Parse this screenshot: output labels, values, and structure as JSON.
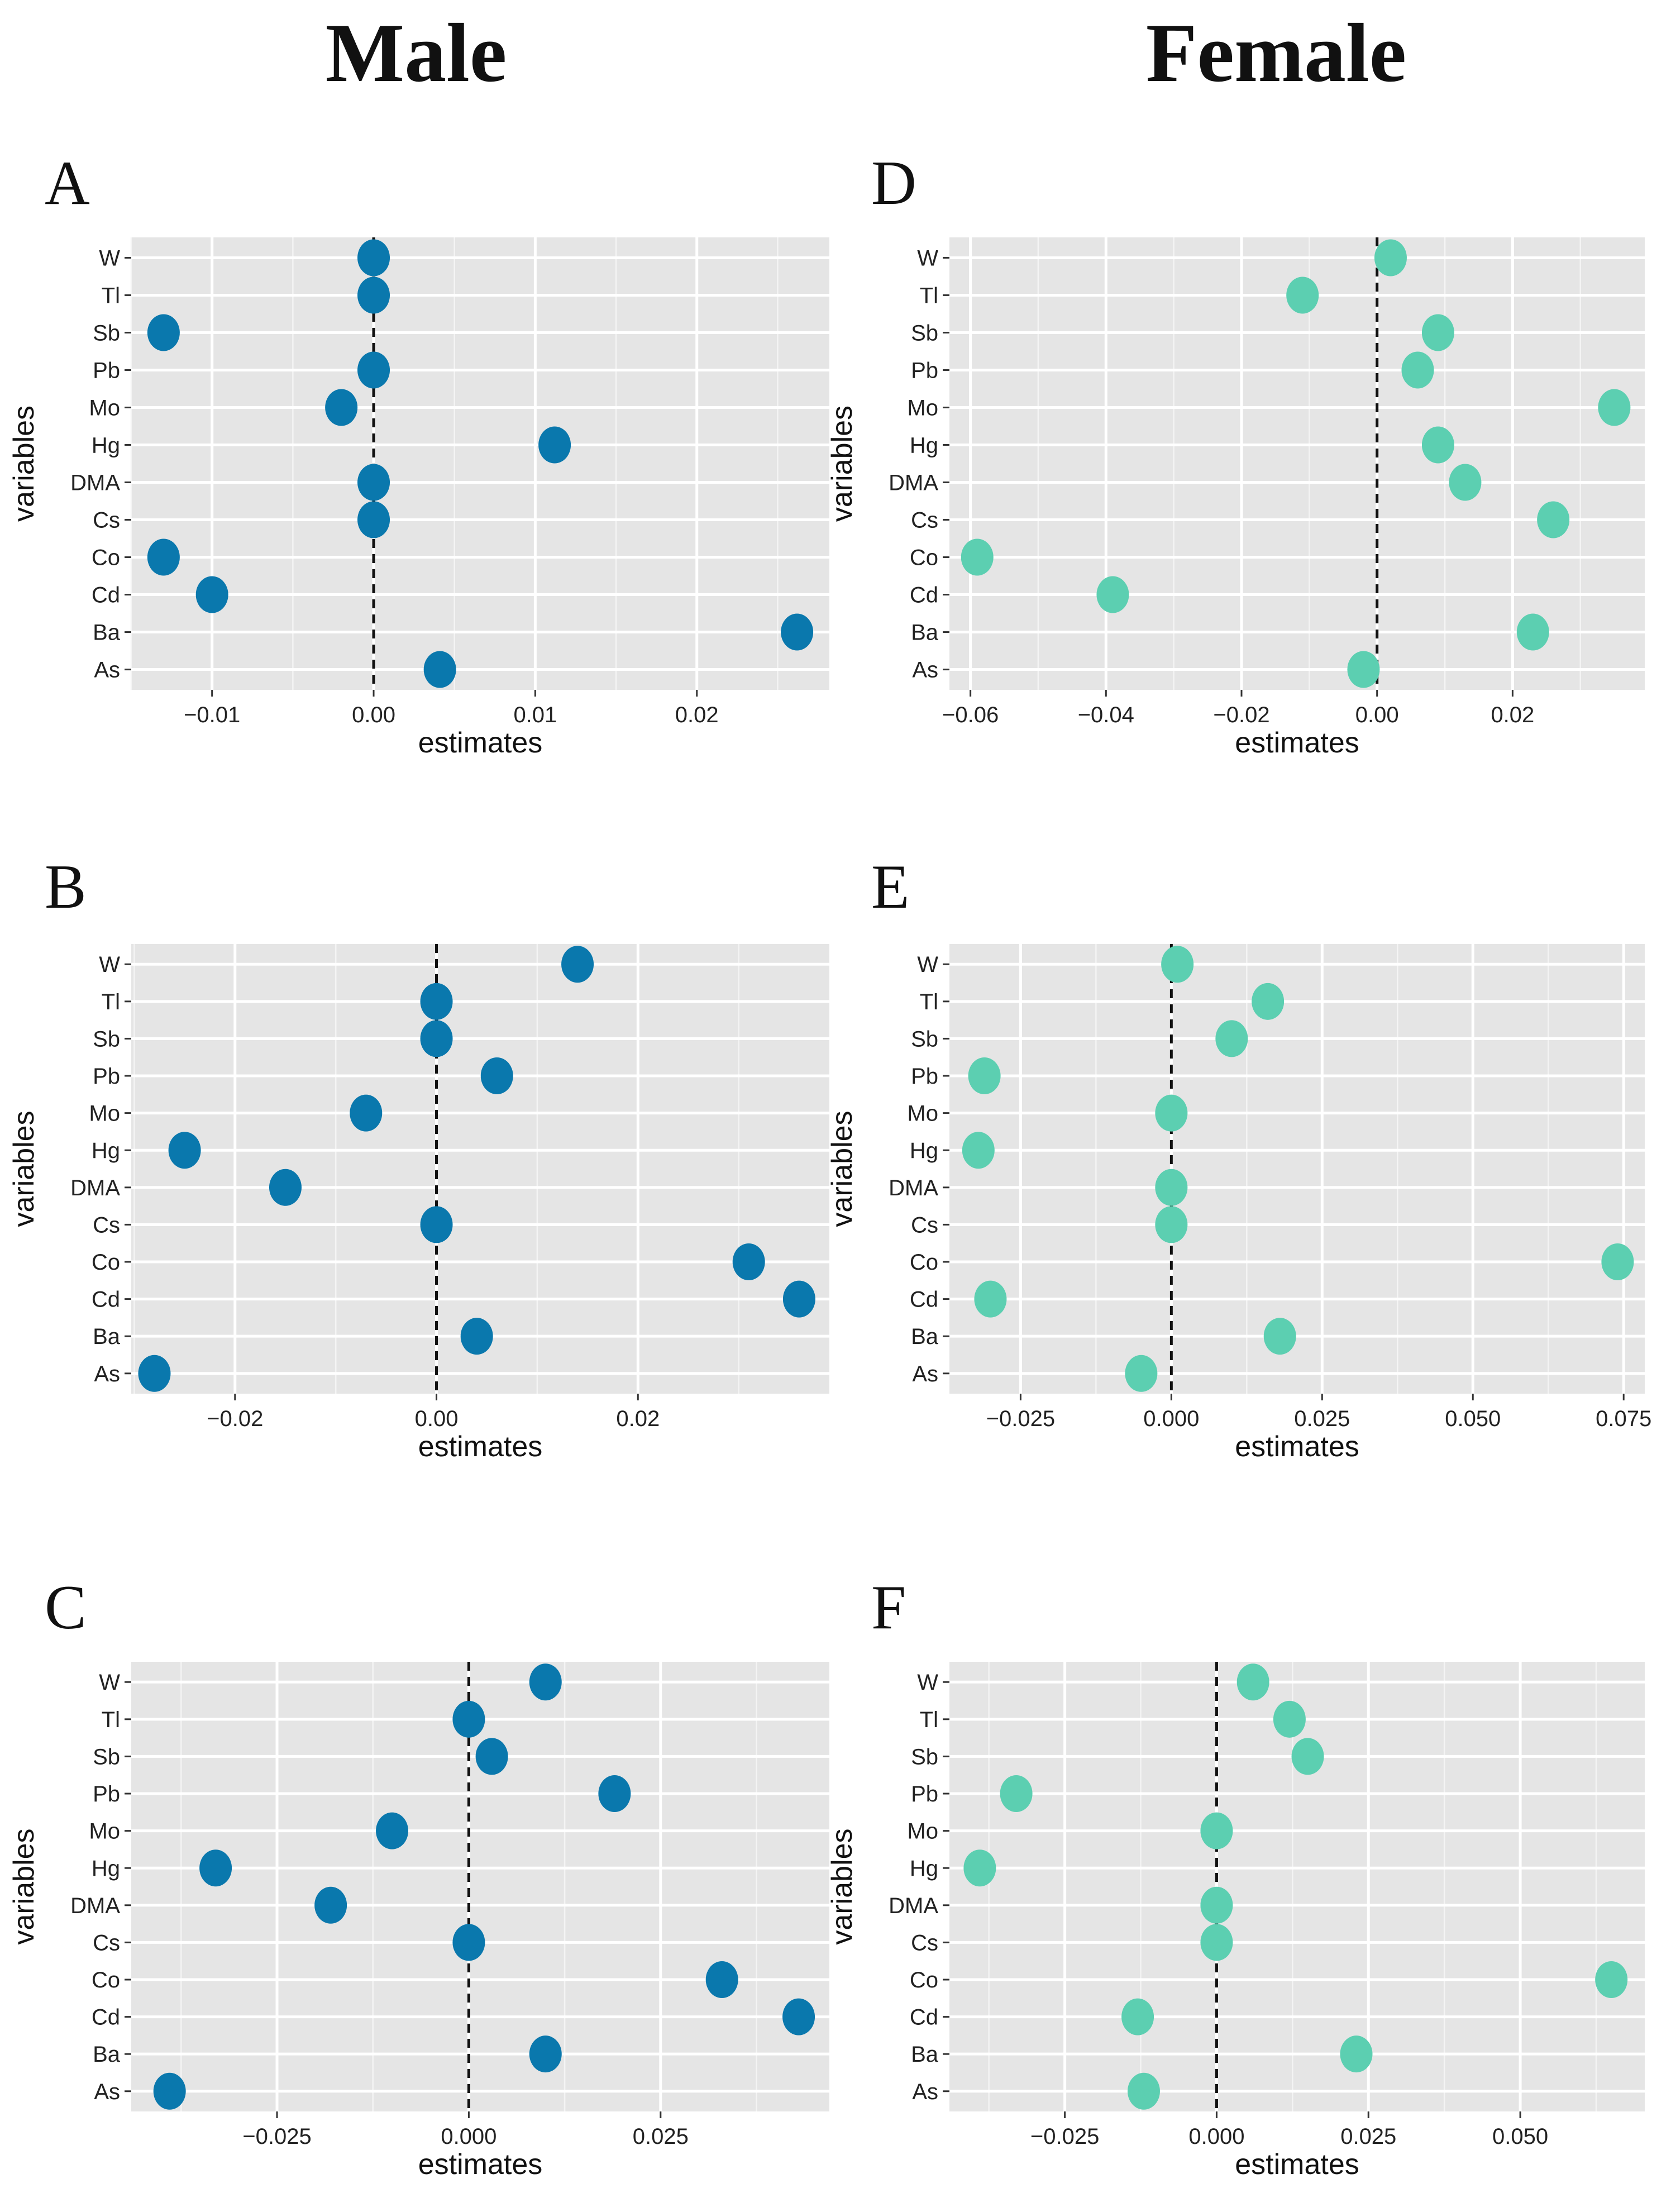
{
  "column_titles": {
    "male": "Male",
    "female": "Female"
  },
  "chart_data": [
    {
      "panel": "A",
      "group": "Male",
      "type": "scatter",
      "xlabel": "estimates",
      "ylabel": "variables",
      "xlim": [
        -0.015,
        0.0282
      ],
      "xticks": [
        -0.01,
        0.0,
        0.01,
        0.02
      ],
      "xtick_labels": [
        "-0.01",
        "0.00",
        "0.01",
        "0.02"
      ],
      "categories": [
        "W",
        "Tl",
        "Sb",
        "Pb",
        "Mo",
        "Hg",
        "DMA",
        "Cs",
        "Co",
        "Cd",
        "Ba",
        "As"
      ],
      "values": [
        0.0,
        0.0,
        -0.013,
        0.0,
        -0.002,
        0.0112,
        0.0,
        0.0,
        -0.013,
        -0.01,
        0.0262,
        0.0041
      ],
      "reference_line": 0,
      "color": "#0a78ad"
    },
    {
      "panel": "B",
      "group": "Male",
      "type": "scatter",
      "xlabel": "estimates",
      "ylabel": "variables",
      "xlim": [
        -0.0303,
        0.039
      ],
      "xticks": [
        -0.02,
        0.0,
        0.02
      ],
      "xtick_labels": [
        "-0.02",
        "0.00",
        "0.02"
      ],
      "categories": [
        "W",
        "Tl",
        "Sb",
        "Pb",
        "Mo",
        "Hg",
        "DMA",
        "Cs",
        "Co",
        "Cd",
        "Ba",
        "As"
      ],
      "values": [
        0.014,
        0.0,
        0.0,
        0.006,
        -0.007,
        -0.025,
        -0.015,
        0.0,
        0.031,
        0.036,
        0.004,
        -0.028
      ],
      "reference_line": 0,
      "color": "#0a78ad"
    },
    {
      "panel": "C",
      "group": "Male",
      "type": "scatter",
      "xlabel": "estimates",
      "ylabel": "variables",
      "xlim": [
        -0.044,
        0.047
      ],
      "xticks": [
        -0.025,
        0.0,
        0.025
      ],
      "xtick_labels": [
        "-0.025",
        "0.000",
        "0.025"
      ],
      "categories": [
        "W",
        "Tl",
        "Sb",
        "Pb",
        "Mo",
        "Hg",
        "DMA",
        "Cs",
        "Co",
        "Cd",
        "Ba",
        "As"
      ],
      "values": [
        0.01,
        0.0,
        0.003,
        0.019,
        -0.01,
        -0.033,
        -0.018,
        0.0,
        0.033,
        0.043,
        0.01,
        -0.039
      ],
      "reference_line": 0,
      "color": "#0a78ad"
    },
    {
      "panel": "D",
      "group": "Female",
      "type": "scatter",
      "xlabel": "estimates",
      "ylabel": "variables",
      "xlim": [
        -0.0631,
        0.0395
      ],
      "xticks": [
        -0.06,
        -0.04,
        -0.02,
        0.0,
        0.02
      ],
      "xtick_labels": [
        "-0.06",
        "-0.04",
        "-0.02",
        "0.00",
        "0.02"
      ],
      "categories": [
        "W",
        "Tl",
        "Sb",
        "Pb",
        "Mo",
        "Hg",
        "DMA",
        "Cs",
        "Co",
        "Cd",
        "Ba",
        "As"
      ],
      "values": [
        0.002,
        -0.011,
        0.009,
        0.006,
        0.035,
        0.009,
        0.013,
        0.026,
        -0.059,
        -0.039,
        0.023,
        -0.002
      ],
      "reference_line": 0,
      "color": "#5ccfb1"
    },
    {
      "panel": "E",
      "group": "Female",
      "type": "scatter",
      "xlabel": "estimates",
      "ylabel": "variables",
      "xlim": [
        -0.0368,
        0.0785
      ],
      "xticks": [
        -0.025,
        0.0,
        0.025,
        0.05,
        0.075
      ],
      "xtick_labels": [
        "-0.025",
        "0.000",
        "0.025",
        "0.050",
        "0.075"
      ],
      "categories": [
        "W",
        "Tl",
        "Sb",
        "Pb",
        "Mo",
        "Hg",
        "DMA",
        "Cs",
        "Co",
        "Cd",
        "Ba",
        "As"
      ],
      "values": [
        0.001,
        0.016,
        0.01,
        -0.031,
        0.0,
        -0.032,
        0.0,
        0.0,
        0.074,
        -0.03,
        0.018,
        -0.005
      ],
      "reference_line": 0,
      "color": "#5ccfb1"
    },
    {
      "panel": "F",
      "group": "Female",
      "type": "scatter",
      "xlabel": "estimates",
      "ylabel": "variables",
      "xlim": [
        -0.044,
        0.0705
      ],
      "xticks": [
        -0.025,
        0.0,
        0.025,
        0.05
      ],
      "xtick_labels": [
        "-0.025",
        "0.000",
        "0.025",
        "0.050"
      ],
      "categories": [
        "W",
        "Tl",
        "Sb",
        "Pb",
        "Mo",
        "Hg",
        "DMA",
        "Cs",
        "Co",
        "Cd",
        "Ba",
        "As"
      ],
      "values": [
        0.006,
        0.012,
        0.015,
        -0.033,
        0.0,
        -0.039,
        0.0,
        0.0,
        0.065,
        -0.013,
        0.023,
        -0.012
      ],
      "reference_line": 0,
      "color": "#5ccfb1"
    }
  ]
}
